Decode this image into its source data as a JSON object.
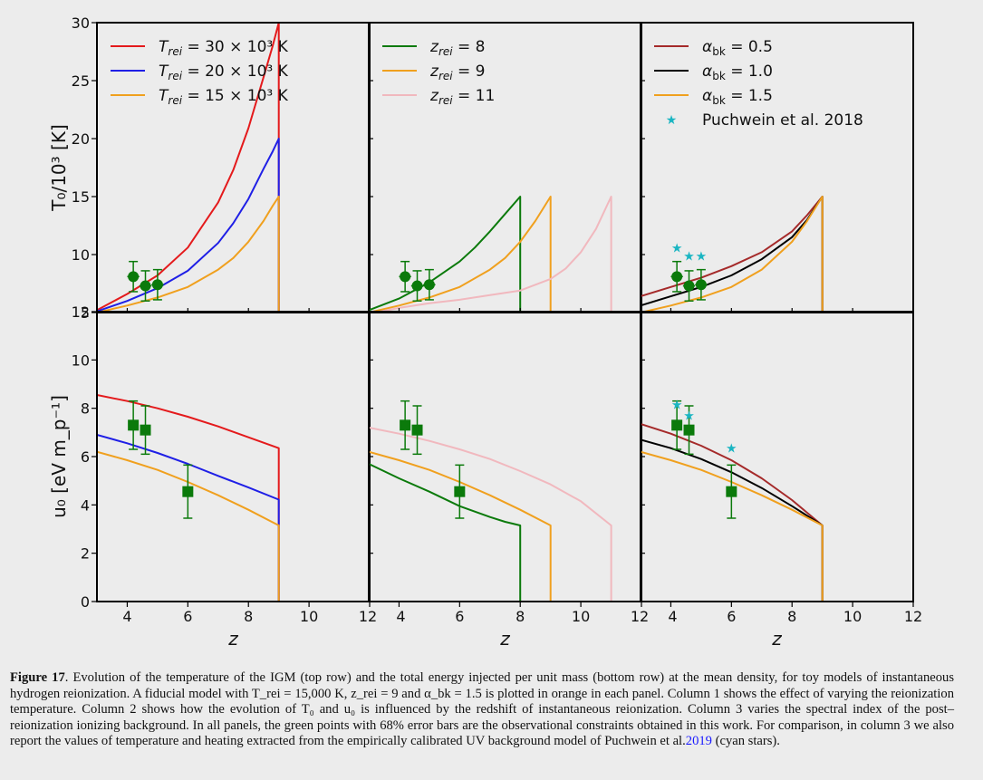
{
  "chart_data": [
    {
      "type": "line",
      "panel": "top-left",
      "ylabel": "T₀/10³ [K]",
      "ylim": [
        5,
        30
      ],
      "xlim": [
        3,
        12
      ],
      "yticks": [
        "5",
        "10",
        "15",
        "20",
        "25",
        "30"
      ],
      "legend": {
        "placement": "top-left",
        "entries": [
          "T_rei = 30 × 10³ K",
          "T_rei = 20 × 10³ K",
          "T_rei = 15 × 10³ K"
        ]
      },
      "series": [
        {
          "name": "T_rei = 30 × 10³ K",
          "color": "#e41a1c",
          "x": [
            3,
            4,
            5,
            6,
            7,
            7.5,
            8,
            8.5,
            8.8,
            9,
            9,
            9
          ],
          "y": [
            5.2,
            6.6,
            8.2,
            10.6,
            14.5,
            17.3,
            20.9,
            25.3,
            28.0,
            30,
            5,
            -5
          ]
        },
        {
          "name": "T_rei = 20 × 10³ K",
          "color": "#1f1fe6",
          "x": [
            3,
            4,
            5,
            6,
            7,
            7.5,
            8,
            8.5,
            8.8,
            9,
            9,
            9
          ],
          "y": [
            5.1,
            6.0,
            7.1,
            8.6,
            11.0,
            12.7,
            14.8,
            17.4,
            18.9,
            20,
            5,
            -5
          ]
        },
        {
          "name": "T_rei = 15 × 10³ K",
          "color": "#f0a01e",
          "x": [
            3,
            4,
            5,
            6,
            7,
            7.5,
            8,
            8.5,
            8.8,
            9,
            9,
            9
          ],
          "y": [
            5.0,
            5.6,
            6.3,
            7.2,
            8.7,
            9.7,
            11.1,
            12.9,
            14.2,
            15,
            5,
            -5
          ]
        }
      ],
      "observations": {
        "x": [
          4.2,
          4.6,
          5.0
        ],
        "y": [
          8.1,
          7.3,
          7.4
        ],
        "yerr": [
          1.3,
          1.3,
          1.3
        ],
        "xerr": [
          0.2,
          0.2,
          0.2
        ]
      }
    },
    {
      "type": "line",
      "panel": "top-middle",
      "xlim": [
        3,
        12
      ],
      "ylim": [
        5,
        30
      ],
      "legend": {
        "placement": "top-left",
        "entries": [
          "z_rei = 8",
          "z_rei = 9",
          "z_rei = 11"
        ]
      },
      "series": [
        {
          "name": "z_rei = 8",
          "color": "#0b7a0b",
          "x": [
            3,
            4,
            5,
            6,
            6.5,
            7,
            7.5,
            8,
            8,
            8
          ],
          "y": [
            5.2,
            6.2,
            7.6,
            9.4,
            10.6,
            12.0,
            13.5,
            15,
            5,
            -5
          ]
        },
        {
          "name": "z_rei = 9",
          "color": "#f0a01e",
          "x": [
            3,
            4,
            5,
            6,
            7,
            7.5,
            8,
            8.5,
            9,
            9,
            9
          ],
          "y": [
            5.0,
            5.6,
            6.3,
            7.2,
            8.7,
            9.7,
            11.1,
            12.9,
            15,
            5,
            -5
          ]
        },
        {
          "name": "z_rei = 11",
          "color": "#f1b8be",
          "x": [
            3,
            4,
            5,
            6,
            7,
            8,
            9,
            9.5,
            10,
            10.5,
            11,
            11,
            11
          ],
          "y": [
            4.9,
            5.4,
            5.8,
            6.1,
            6.5,
            6.9,
            7.9,
            8.8,
            10.2,
            12.2,
            15,
            5,
            -5
          ]
        }
      ],
      "observations": {
        "x": [
          4.2,
          4.6,
          5.0
        ],
        "y": [
          8.1,
          7.3,
          7.4
        ],
        "yerr": [
          1.3,
          1.3,
          1.3
        ],
        "xerr": [
          0.2,
          0.2,
          0.2
        ]
      }
    },
    {
      "type": "line",
      "panel": "top-right",
      "xlim": [
        3,
        12
      ],
      "ylim": [
        5,
        30
      ],
      "legend": {
        "placement": "top-right",
        "entries": [
          "α_bk = 0.5",
          "α_bk = 1.0",
          "α_bk = 1.5",
          "Puchwein et al. 2018"
        ]
      },
      "series": [
        {
          "name": "α_bk = 0.5",
          "color": "#a52a2a",
          "x": [
            3,
            4,
            5,
            6,
            7,
            8,
            8.5,
            9,
            9,
            9
          ],
          "y": [
            6.4,
            7.2,
            8.0,
            9.0,
            10.2,
            12.0,
            13.4,
            15,
            5,
            -5
          ]
        },
        {
          "name": "α_bk = 1.0",
          "color": "#000000",
          "x": [
            3,
            4,
            5,
            6,
            7,
            8,
            8.5,
            9,
            9,
            9
          ],
          "y": [
            5.6,
            6.4,
            7.2,
            8.2,
            9.6,
            11.5,
            13.0,
            15,
            5,
            -5
          ]
        },
        {
          "name": "α_bk = 1.5",
          "color": "#f0a01e",
          "x": [
            3,
            4,
            5,
            6,
            7,
            8,
            8.5,
            9,
            9,
            9
          ],
          "y": [
            5.0,
            5.6,
            6.3,
            7.2,
            8.7,
            11.1,
            12.9,
            15,
            5,
            -5
          ]
        }
      ],
      "stars": {
        "name": "Puchwein et al. 2018",
        "color": "#1ab5c2",
        "x": [
          4.2,
          4.6,
          5.0
        ],
        "y": [
          10.6,
          9.9,
          9.9
        ]
      },
      "observations": {
        "x": [
          4.2,
          4.6,
          5.0
        ],
        "y": [
          8.1,
          7.3,
          7.4
        ],
        "yerr": [
          1.3,
          1.3,
          1.3
        ],
        "xerr": [
          0.2,
          0.2,
          0.2
        ]
      }
    },
    {
      "type": "line",
      "panel": "bottom-left",
      "xlabel": "z",
      "ylabel": "u₀ [eV m_p⁻¹]",
      "xlim": [
        3,
        12
      ],
      "ylim": [
        0,
        12
      ],
      "xticks": [
        "4",
        "6",
        "8",
        "10",
        "12"
      ],
      "yticks": [
        "0",
        "2",
        "4",
        "6",
        "8",
        "10",
        "12"
      ],
      "series": [
        {
          "name": "T_rei = 30 × 10³ K",
          "color": "#e41a1c",
          "x": [
            3,
            4,
            5,
            6,
            7,
            8,
            9,
            9,
            9
          ],
          "y": [
            8.55,
            8.3,
            8.0,
            7.65,
            7.25,
            6.8,
            6.35,
            0,
            -2
          ]
        },
        {
          "name": "T_rei = 20 × 10³ K",
          "color": "#1f1fe6",
          "x": [
            3,
            4,
            5,
            6,
            7,
            8,
            9,
            9,
            9
          ],
          "y": [
            6.9,
            6.55,
            6.15,
            5.7,
            5.2,
            4.72,
            4.22,
            0,
            -2
          ]
        },
        {
          "name": "T_rei = 15 × 10³ K",
          "color": "#f0a01e",
          "x": [
            3,
            4,
            5,
            6,
            7,
            8,
            9,
            9,
            9
          ],
          "y": [
            6.2,
            5.85,
            5.45,
            4.95,
            4.4,
            3.8,
            3.15,
            0,
            -2
          ]
        }
      ],
      "observations": {
        "x": [
          4.2,
          4.6,
          6.0
        ],
        "y": [
          7.3,
          7.1,
          4.55
        ],
        "yerr": [
          1.0,
          1.0,
          1.1
        ],
        "xerr": [
          0,
          0,
          0
        ]
      }
    },
    {
      "type": "line",
      "panel": "bottom-middle",
      "xlabel": "z",
      "xlim": [
        3,
        12
      ],
      "ylim": [
        0,
        12
      ],
      "xticks": [
        "4",
        "6",
        "8",
        "10",
        "12"
      ],
      "series": [
        {
          "name": "z_rei = 8",
          "color": "#0b7a0b",
          "x": [
            3,
            4,
            5,
            6,
            7,
            7.5,
            8,
            8,
            8
          ],
          "y": [
            5.7,
            5.1,
            4.55,
            3.95,
            3.5,
            3.3,
            3.15,
            0,
            -2
          ]
        },
        {
          "name": "z_rei = 9",
          "color": "#f0a01e",
          "x": [
            3,
            4,
            5,
            6,
            7,
            8,
            9,
            9,
            9
          ],
          "y": [
            6.2,
            5.85,
            5.45,
            4.95,
            4.4,
            3.8,
            3.15,
            0,
            -2
          ]
        },
        {
          "name": "z_rei = 11",
          "color": "#f1b8be",
          "x": [
            3,
            4,
            5,
            6,
            7,
            8,
            9,
            10,
            11,
            11,
            11
          ],
          "y": [
            7.2,
            6.95,
            6.65,
            6.3,
            5.9,
            5.4,
            4.85,
            4.15,
            3.15,
            0,
            -2
          ]
        }
      ],
      "observations": {
        "x": [
          4.2,
          4.6,
          6.0
        ],
        "y": [
          7.3,
          7.1,
          4.55
        ],
        "yerr": [
          1.0,
          1.0,
          1.1
        ],
        "xerr": [
          0,
          0,
          0
        ]
      }
    },
    {
      "type": "line",
      "panel": "bottom-right",
      "xlabel": "z",
      "xlim": [
        3,
        12
      ],
      "ylim": [
        0,
        12
      ],
      "xticks": [
        "4",
        "6",
        "8",
        "10",
        "12"
      ],
      "series": [
        {
          "name": "α_bk = 0.5",
          "color": "#a52a2a",
          "x": [
            3,
            4,
            5,
            6,
            7,
            8,
            9,
            9,
            9
          ],
          "y": [
            7.35,
            6.95,
            6.45,
            5.85,
            5.1,
            4.2,
            3.15,
            0,
            -2
          ]
        },
        {
          "name": "α_bk = 1.0",
          "color": "#000000",
          "x": [
            3,
            4,
            5,
            6,
            7,
            8,
            9,
            9,
            9
          ],
          "y": [
            6.7,
            6.35,
            5.9,
            5.35,
            4.7,
            3.95,
            3.15,
            0,
            -2
          ]
        },
        {
          "name": "α_bk = 1.5",
          "color": "#f0a01e",
          "x": [
            3,
            4,
            5,
            6,
            7,
            8,
            9,
            9,
            9
          ],
          "y": [
            6.2,
            5.85,
            5.45,
            4.95,
            4.4,
            3.8,
            3.15,
            0,
            -2
          ]
        }
      ],
      "stars": {
        "name": "Puchwein et al. 2018",
        "color": "#1ab5c2",
        "x": [
          4.2,
          4.6,
          6.0
        ],
        "y": [
          8.15,
          7.7,
          6.35
        ]
      },
      "observations": {
        "x": [
          4.2,
          4.6,
          6.0
        ],
        "y": [
          7.3,
          7.1,
          4.55
        ],
        "yerr": [
          1.0,
          1.0,
          1.1
        ],
        "xerr": [
          0,
          0,
          0
        ]
      }
    }
  ],
  "caption": {
    "label": "Figure 17",
    "text": ". Evolution of the temperature of the IGM (top row) and the total energy injected per unit mass (bottom row) at the mean density, for toy models of instantaneous hydrogen reionization. A fiducial model with T_rei = 15,000 K, z_rei = 9 and α_bk = 1.5 is plotted in orange in each panel. Column 1 shows the effect of varying the reionization temperature. Column 2 shows how the evolution of T₀ and u₀ is influenced by the redshift of instantaneous reionization. Column 3 varies the spectral index of the post–reionization ionizing background. In all panels, the green points with 68% error bars are the observational constraints obtained in this work. For comparison, in column 3 we also report the values of temperature and heating extracted from the empirically calibrated UV background model of Puchwein et al.",
    "cite": "2019",
    "tail": " (cyan stars)."
  }
}
